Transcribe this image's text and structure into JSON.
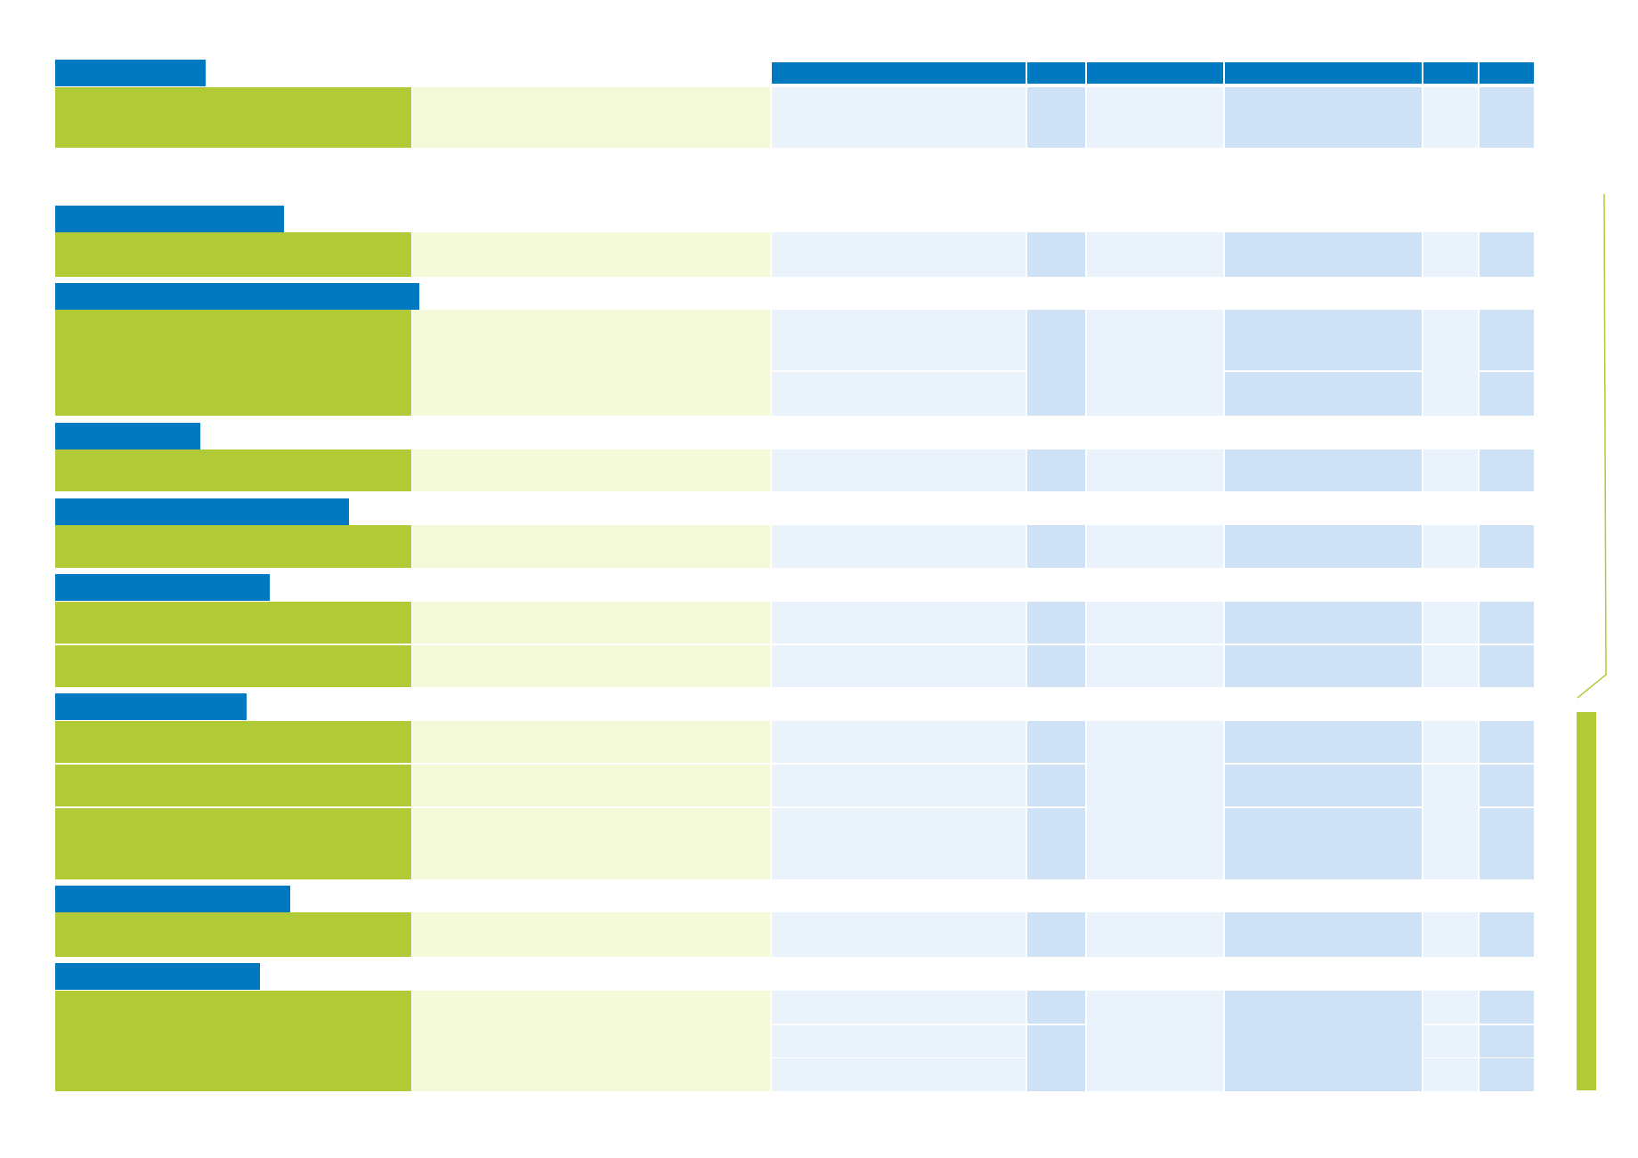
{
  "document": {
    "title": "",
    "sections": [
      {
        "heading": "",
        "rows": [
          ""
        ]
      },
      {
        "heading": "",
        "rows": [
          ""
        ]
      },
      {
        "heading": "",
        "rows": [
          "",
          ""
        ]
      },
      {
        "heading": "",
        "rows": [
          ""
        ]
      },
      {
        "heading": "",
        "rows": [
          ""
        ]
      },
      {
        "heading": "",
        "rows": [
          "",
          ""
        ]
      },
      {
        "heading": "",
        "rows": [
          "",
          "",
          ""
        ]
      },
      {
        "heading": "",
        "rows": [
          ""
        ]
      },
      {
        "heading": "",
        "rows": [
          "",
          "",
          ""
        ]
      }
    ],
    "column_headers": [
      "",
      "",
      "",
      "",
      "",
      ""
    ]
  },
  "colors": {
    "header_blue": "#0079c1",
    "label_green": "#b1ca35",
    "description_pale_green": "#f4f9d9",
    "cell_light_blue": "#eaf3fc",
    "cell_mid_blue": "#cfe1f5"
  }
}
